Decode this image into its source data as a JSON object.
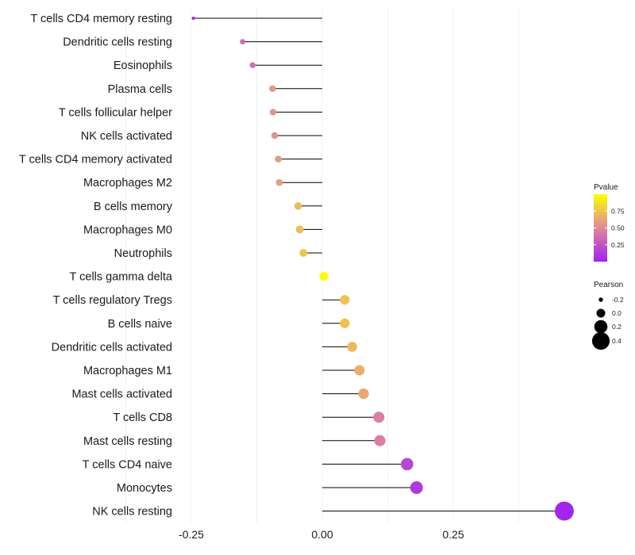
{
  "chart_data": {
    "type": "lollipop",
    "title": "",
    "xlabel": "",
    "ylabel": "",
    "xlim": [
      -0.25,
      0.46
    ],
    "xticks": [
      -0.25,
      0.0,
      0.25
    ],
    "x_tick_labels": [
      "-0.25",
      "0.00",
      "0.25"
    ],
    "grid": true,
    "color_legend": {
      "title": "Pvalue",
      "ticks": [
        0.25,
        0.5,
        0.75
      ],
      "tick_labels": [
        "0.25",
        "0.50",
        "0.75"
      ],
      "range": [
        0.0,
        1.0
      ],
      "low_color": "#a020f0",
      "mid_color": "#e0899a",
      "high_color": "#ffff00"
    },
    "size_legend": {
      "title": "Pearson",
      "values": [
        -0.2,
        0.0,
        0.2,
        0.4
      ],
      "labels": [
        "-0.2",
        "0.0",
        "0.2",
        "0.4"
      ]
    },
    "categories": [
      "T cells CD4 memory resting",
      "Dendritic cells resting",
      "Eosinophils",
      "Plasma cells",
      "T cells follicular helper",
      "NK cells activated",
      "T cells CD4 memory activated",
      "Macrophages M2",
      "B cells memory",
      "Macrophages M0",
      "Neutrophils",
      "T cells gamma delta",
      "T cells regulatory  Tregs ",
      "B cells naive",
      "Dendritic cells activated",
      "Macrophages M1",
      "Mast cells activated",
      "T cells CD8",
      "Mast cells resting",
      "T cells CD4 naive",
      "Monocytes",
      "NK cells resting"
    ],
    "pearson": [
      -0.246,
      -0.152,
      -0.133,
      -0.095,
      -0.094,
      -0.091,
      -0.084,
      -0.082,
      -0.046,
      -0.043,
      -0.036,
      0.003,
      0.043,
      0.043,
      0.057,
      0.071,
      0.079,
      0.108,
      0.11,
      0.162,
      0.18,
      0.462
    ],
    "pvalue": [
      0.02,
      0.35,
      0.38,
      0.55,
      0.55,
      0.55,
      0.58,
      0.58,
      0.72,
      0.72,
      0.76,
      0.98,
      0.74,
      0.74,
      0.7,
      0.66,
      0.63,
      0.45,
      0.45,
      0.18,
      0.12,
      0.02
    ]
  }
}
